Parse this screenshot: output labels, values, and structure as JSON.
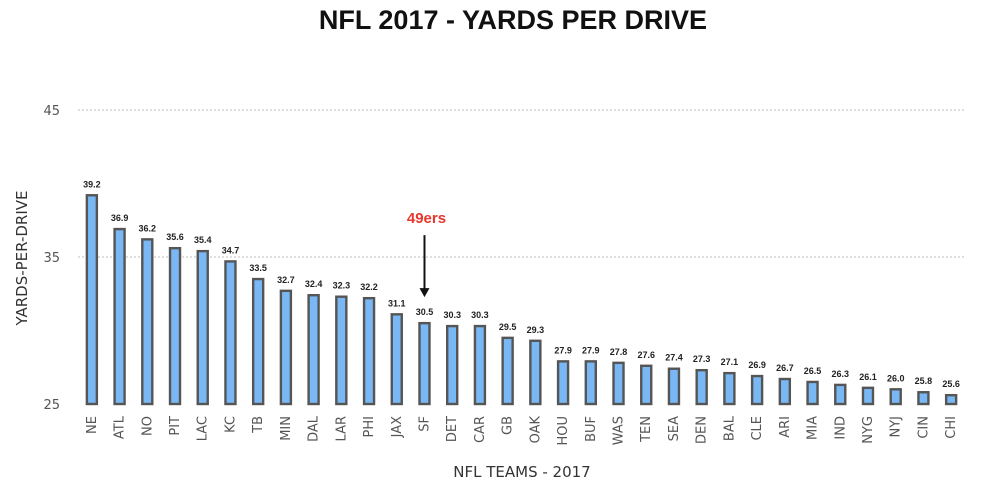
{
  "chart_data": {
    "type": "bar",
    "title": "NFL 2017 - YARDS PER DRIVE",
    "xlabel": "NFL TEAMS - 2017",
    "ylabel": "YARDS-PER-DRIVE",
    "ylim": [
      25,
      45
    ],
    "yticks": [
      "25",
      "35",
      "45"
    ],
    "grid": true,
    "bar_color": "#79b8f4",
    "bar_edge_color": "#555555",
    "categories": [
      "NE",
      "ATL",
      "NO",
      "PIT",
      "LAC",
      "KC",
      "TB",
      "MIN",
      "DAL",
      "LAR",
      "PHI",
      "JAX",
      "SF",
      "DET",
      "CAR",
      "GB",
      "OAK",
      "HOU",
      "BUF",
      "WAS",
      "TEN",
      "SEA",
      "DEN",
      "BAL",
      "CLE",
      "ARI",
      "MIA",
      "IND",
      "NYG",
      "NYJ",
      "CIN",
      "CHI"
    ],
    "values": [
      39.2,
      36.9,
      36.2,
      35.6,
      35.4,
      34.7,
      33.5,
      32.7,
      32.4,
      32.3,
      32.2,
      31.1,
      30.5,
      30.3,
      30.3,
      29.5,
      29.3,
      27.9,
      27.9,
      27.8,
      27.6,
      27.4,
      27.3,
      27.1,
      26.9,
      26.7,
      26.5,
      26.3,
      26.1,
      26.0,
      25.8,
      25.6
    ],
    "value_labels": [
      "39.2",
      "36.9",
      "36.2",
      "35.6",
      "35.4",
      "34.7",
      "33.5",
      "32.7",
      "32.4",
      "32.3",
      "32.2",
      "31.1",
      "30.5",
      "30.3",
      "30.3",
      "29.5",
      "29.3",
      "27.9",
      "27.9",
      "27.8",
      "27.6",
      "27.4",
      "27.3",
      "27.1",
      "26.9",
      "26.7",
      "26.5",
      "26.3",
      "26.1",
      "26.0",
      "25.8",
      "25.6"
    ],
    "annotation": {
      "text": "49ers",
      "category": "SF",
      "color": "#e8372c"
    }
  }
}
